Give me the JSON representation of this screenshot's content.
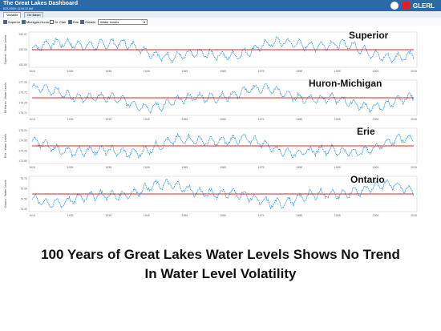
{
  "app": {
    "title": "The Great Lakes Dashboard",
    "timestamp": "6/21/2019, 11:54:12 AM",
    "logos": [
      "noaa-logo",
      "usace-logo"
    ],
    "brand": "GLERL"
  },
  "tabs": [
    {
      "label": "Variable",
      "active": true
    },
    {
      "label": "On Basin",
      "active": false
    }
  ],
  "controls": {
    "lakes": [
      {
        "label": "Superior",
        "checked": true
      },
      {
        "label": "Michigan-Huron",
        "checked": true
      },
      {
        "label": "St. Clair",
        "checked": false
      },
      {
        "label": "Erie",
        "checked": true
      },
      {
        "label": "Ontario",
        "checked": true
      }
    ],
    "variable_select": "Water Levels"
  },
  "chart_data": [
    {
      "type": "line",
      "name": "Superior",
      "ylabel": "Superior - Water Levels",
      "yticks": [
        "183.67",
        "183.26",
        "182.84"
      ],
      "x_ticks": [
        "1915",
        "1925",
        "1935",
        "1945",
        "1955",
        "1965",
        "1975",
        "1985",
        "1995",
        "2005",
        "2015"
      ],
      "series_color": "#2e9be0",
      "trend_color": "#e02020"
    },
    {
      "type": "line",
      "name": "Huron-Michigan",
      "ylabel": "MI Huron - Water Levels",
      "yticks": [
        "177.25",
        "176.72",
        "176.25",
        "175.71"
      ],
      "x_ticks": [
        "1915",
        "1925",
        "1935",
        "1945",
        "1955",
        "1965",
        "1975",
        "1985",
        "1995",
        "2005",
        "2015"
      ],
      "series_color": "#2e9be0",
      "trend_color": "#e02020"
    },
    {
      "type": "line",
      "name": "Erie",
      "ylabel": "Erie - Water Levels",
      "yticks": [
        "175.04",
        "174.65",
        "174.26",
        "173.84"
      ],
      "x_ticks": [
        "1915",
        "1925",
        "1935",
        "1945",
        "1955",
        "1965",
        "1975",
        "1985",
        "1995",
        "2005",
        "2015"
      ],
      "series_color": "#2e9be0",
      "trend_color": "#e02020"
    },
    {
      "type": "line",
      "name": "Ontario",
      "ylabel": "Ontario - Water Levels",
      "yticks": [
        "75.70",
        "75.06",
        "74.50",
        "73.90"
      ],
      "x_ticks": [
        "1915",
        "1925",
        "1935",
        "1945",
        "1955",
        "1965",
        "1975",
        "1985",
        "1995",
        "2005",
        "2015"
      ],
      "series_color": "#2e9be0",
      "trend_color": "#e02020"
    }
  ],
  "caption": {
    "line1": "100 Years of Great Lakes Water Levels Shows No Trend",
    "line2": "In Water Level Volatility"
  }
}
